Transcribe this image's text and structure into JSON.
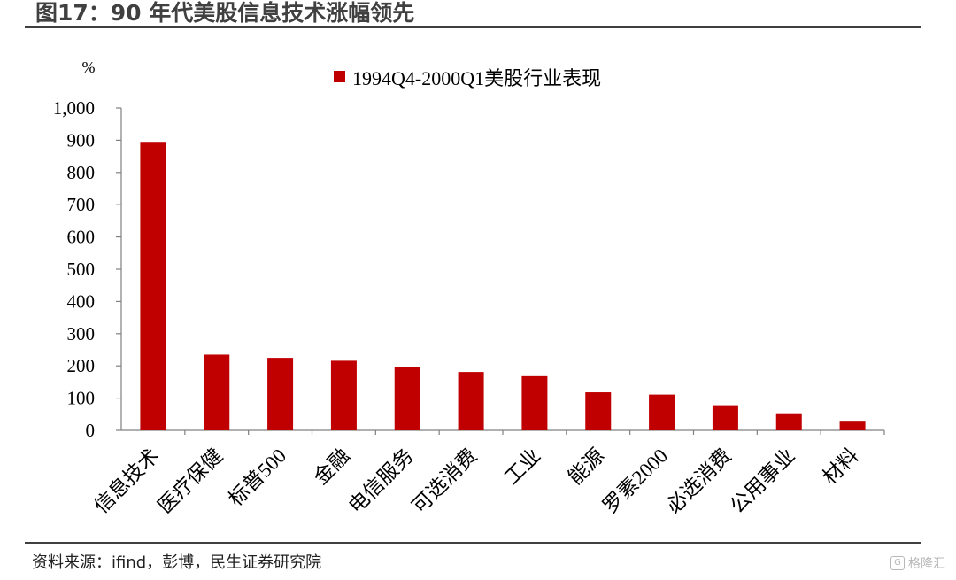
{
  "figure": {
    "title": "图17：90 年代美股信息技术涨幅领先",
    "source": "资料来源：ifind，彭博，民生证券研究院",
    "watermark": "格隆汇"
  },
  "colors": {
    "bar": "#C00000",
    "axis": "#808080",
    "rule": "#404040"
  },
  "chart_data": {
    "type": "bar",
    "ylabel": "%",
    "ylim": [
      0,
      1000
    ],
    "yticks": [
      0,
      100,
      200,
      300,
      400,
      500,
      600,
      700,
      800,
      900,
      1000
    ],
    "ytick_labels": [
      "0",
      "100",
      "200",
      "300",
      "400",
      "500",
      "600",
      "700",
      "800",
      "900",
      "1,000"
    ],
    "legend_position": "top-center",
    "grid": false,
    "categories": [
      "信息技术",
      "医疗保健",
      "标普500",
      "金融",
      "电信服务",
      "可选消费",
      "工业",
      "能源",
      "罗素2000",
      "必选消费",
      "公用事业",
      "材料"
    ],
    "series": [
      {
        "name": "1994Q4-2000Q1美股行业表现",
        "values": [
          895,
          235,
          225,
          216,
          197,
          181,
          168,
          118,
          111,
          78,
          53,
          27
        ]
      }
    ]
  }
}
